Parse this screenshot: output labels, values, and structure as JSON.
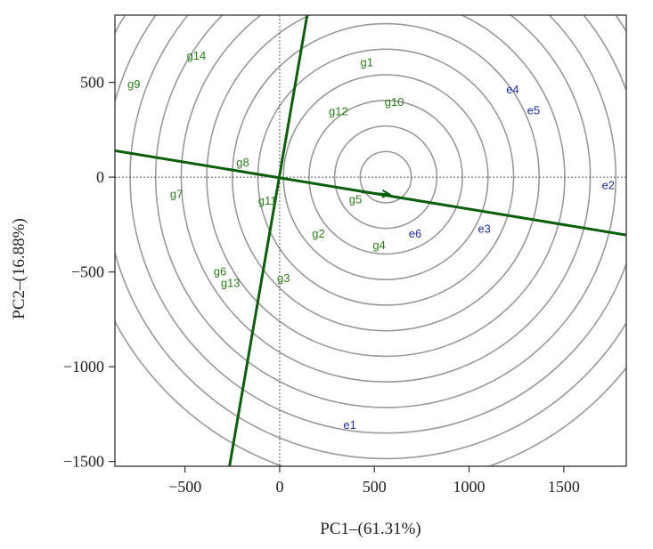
{
  "chart_data": {
    "type": "scatter",
    "title": "",
    "xlabel": "PC1–(61.31%)",
    "ylabel": "PC2–(16.88%)",
    "xlim": [
      -870,
      1830
    ],
    "ylim": [
      -1525,
      855
    ],
    "xticks": [
      -500,
      0,
      500,
      1000,
      1500
    ],
    "yticks": [
      500,
      0,
      -500,
      -1000,
      -1500
    ],
    "xtick_labels": [
      "−500",
      "0",
      "500",
      "1000",
      "1500"
    ],
    "ytick_labels": [
      "500",
      "0",
      "−500",
      "−1000",
      "−1500"
    ],
    "grid": false,
    "genotypes": {
      "color": "#2e7d1e",
      "points": [
        {
          "label": "g1",
          "x": 460,
          "y": 605
        },
        {
          "label": "g2",
          "x": 205,
          "y": -300
        },
        {
          "label": "g3",
          "x": 20,
          "y": -535
        },
        {
          "label": "g4",
          "x": 525,
          "y": -360
        },
        {
          "label": "g5",
          "x": 400,
          "y": -120
        },
        {
          "label": "g6",
          "x": -315,
          "y": -500
        },
        {
          "label": "g7",
          "x": -545,
          "y": -90
        },
        {
          "label": "g8",
          "x": -195,
          "y": 75
        },
        {
          "label": "g9",
          "x": -770,
          "y": 490
        },
        {
          "label": "g10",
          "x": 605,
          "y": 395
        },
        {
          "label": "g11",
          "x": -65,
          "y": -125
        },
        {
          "label": "g12",
          "x": 310,
          "y": 345
        },
        {
          "label": "g13",
          "x": -260,
          "y": -560
        },
        {
          "label": "g14",
          "x": -440,
          "y": 640
        }
      ]
    },
    "environments": {
      "color": "#1f2f9a",
      "points": [
        {
          "label": "e1",
          "x": 370,
          "y": -1310
        },
        {
          "label": "e2",
          "x": 1735,
          "y": -45
        },
        {
          "label": "e3",
          "x": 1080,
          "y": -275
        },
        {
          "label": "e4",
          "x": 1230,
          "y": 460
        },
        {
          "label": "e5",
          "x": 1340,
          "y": 350
        },
        {
          "label": "e6",
          "x": 715,
          "y": -300
        }
      ]
    },
    "ideal_center": {
      "x": 560,
      "y": 0
    },
    "circle_radii": [
      135,
      270,
      405,
      540,
      675,
      810,
      945,
      1080,
      1215,
      1350,
      1485,
      1620
    ],
    "ranking_line": {
      "from": {
        "x": -870,
        "y": 140
      },
      "to": {
        "x": 1830,
        "y": -305
      }
    },
    "perpendicular_line": {
      "from": {
        "x": -265,
        "y": -1525
      },
      "to": {
        "x": 145,
        "y": 855
      }
    },
    "arrow": {
      "from": {
        "x": 430,
        "y": -80
      },
      "to": {
        "x": 580,
        "y": -90
      }
    },
    "reference_lines": {
      "x": 0,
      "y": 0
    },
    "line_color": "#0b5e0b",
    "circle_color": "#999999"
  }
}
